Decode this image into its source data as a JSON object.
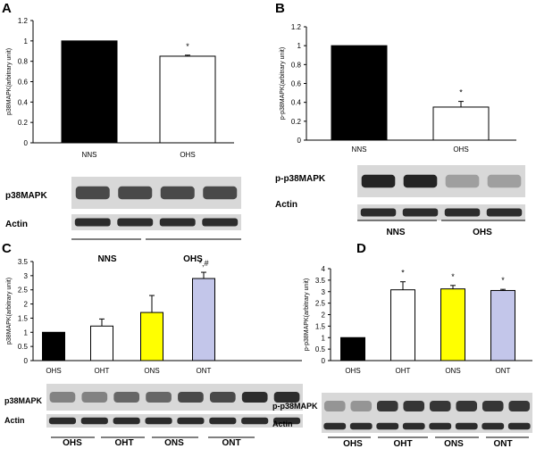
{
  "panels": [
    {
      "letter": "A"
    },
    {
      "letter": "B"
    },
    {
      "letter": "C"
    },
    {
      "letter": "D"
    }
  ],
  "colors": {
    "black_bar": "#000000",
    "white_bar": "#ffffff",
    "yellow_bar": "#ffff00",
    "lavender_bar": "#c3c6ea",
    "axis": "#000000",
    "blot_band": "#1a1a1a"
  },
  "chart_data": [
    {
      "panel": "A",
      "type": "bar",
      "categories": [
        "NNS",
        "OHS"
      ],
      "values": [
        1.0,
        0.85
      ],
      "errors": [
        0,
        0.01
      ],
      "bar_colors": [
        "#000000",
        "#ffffff"
      ],
      "annotations": [
        "",
        "*"
      ],
      "ylabel": "p38MAPK(arbitrary unit)",
      "ylim": [
        0,
        1.2
      ],
      "yticks": [
        "0",
        "0.2",
        "0.4",
        "0.6",
        "0.8",
        "1",
        "1.2"
      ],
      "blot_labels": [
        "p38MAPK",
        "Actin"
      ],
      "group_labels": [
        "NNS",
        "OHS"
      ]
    },
    {
      "panel": "B",
      "type": "bar",
      "categories": [
        "NNS",
        "OHS"
      ],
      "values": [
        1.0,
        0.35
      ],
      "errors": [
        0,
        0.06
      ],
      "bar_colors": [
        "#000000",
        "#ffffff"
      ],
      "annotations": [
        "",
        "*"
      ],
      "ylabel": "p-p38MAPK(arbitrary unit)",
      "ylim": [
        0,
        1.2
      ],
      "yticks": [
        "0",
        "0.2",
        "0.4",
        "0.6",
        "0.8",
        "1",
        "1.2"
      ],
      "blot_labels": [
        "p-p38MAPK",
        "Actin"
      ],
      "group_labels": [
        "NNS",
        "OHS"
      ]
    },
    {
      "panel": "C",
      "type": "bar",
      "categories": [
        "OHS",
        "OHT",
        "ONS",
        "ONT"
      ],
      "values": [
        1.0,
        1.22,
        1.7,
        2.9
      ],
      "errors": [
        0,
        0.25,
        0.6,
        0.22
      ],
      "bar_colors": [
        "#000000",
        "#ffffff",
        "#ffff00",
        "#c3c6ea"
      ],
      "annotations": [
        "",
        "",
        "",
        "*,#"
      ],
      "ylabel": "p38MAPK(arbitrary unit)",
      "ylim": [
        0,
        3.5
      ],
      "yticks": [
        "0",
        "0.5",
        "1",
        "1.5",
        "2",
        "2.5",
        "3",
        "3.5"
      ],
      "blot_labels": [
        "p38MAPK",
        "Actin"
      ],
      "group_labels": [
        "OHS",
        "OHT",
        "ONS",
        "ONT"
      ]
    },
    {
      "panel": "D",
      "type": "bar",
      "categories": [
        "OHS",
        "OHT",
        "ONS",
        "ONT"
      ],
      "values": [
        1.0,
        3.08,
        3.12,
        3.05
      ],
      "errors": [
        0,
        0.35,
        0.15,
        0.05
      ],
      "bar_colors": [
        "#000000",
        "#ffffff",
        "#ffff00",
        "#c3c6ea"
      ],
      "annotations": [
        "",
        "*",
        "*",
        "*"
      ],
      "ylabel": "p-p38MAPK(arbitrary unit)",
      "ylim": [
        0,
        4
      ],
      "yticks": [
        "0",
        "0.5",
        "1",
        "1.5",
        "2",
        "2.5",
        "3",
        "3.5",
        "4"
      ],
      "blot_labels": [
        "p-p38MAPK",
        "Actin"
      ],
      "group_labels": [
        "OHS",
        "OHT",
        "ONS",
        "ONT"
      ]
    }
  ]
}
